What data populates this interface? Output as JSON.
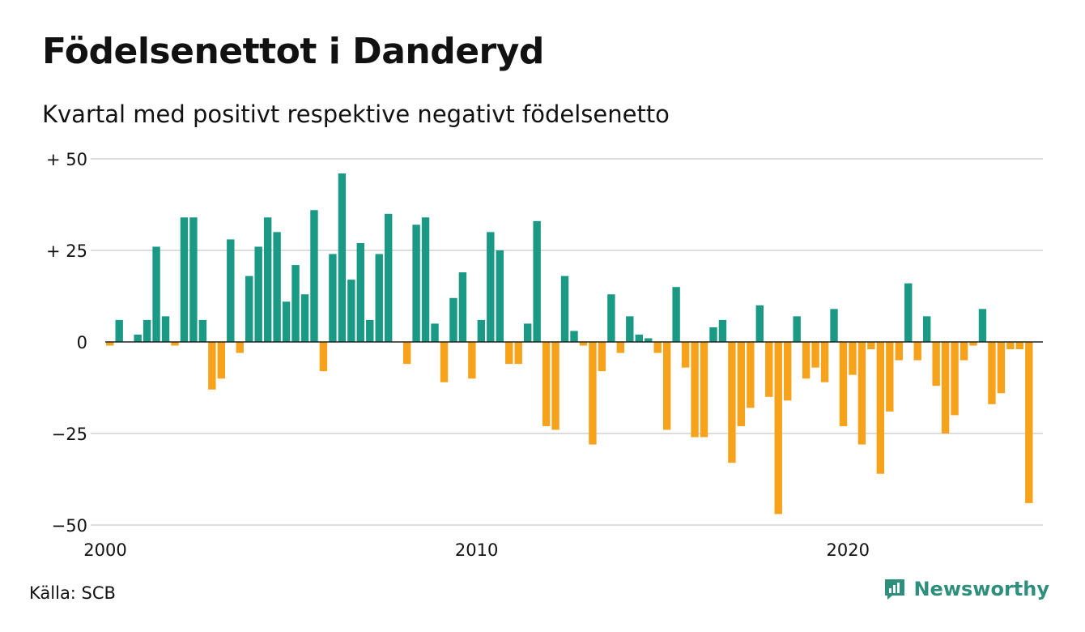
{
  "header": {
    "title": "Födelsenettot i Danderyd",
    "subtitle": "Kvartal med positivt respektive negativt födelsenetto"
  },
  "footer": {
    "source": "Källa: SCB",
    "brand": "Newsworthy",
    "brand_icon": "chart-logo-icon",
    "brand_color": "#2f8f7d"
  },
  "chart_data": {
    "type": "bar",
    "title": "Födelsenettot i Danderyd",
    "subtitle": "Kvartal med positivt respektive negativt födelsenetto",
    "x_start": 2000.0,
    "x_step": 0.25,
    "xlim": [
      2000,
      2025.25
    ],
    "x_ticks": [
      2000,
      2010,
      2020
    ],
    "x_tick_labels": [
      "2000",
      "2010",
      "2020"
    ],
    "ylim": [
      -50,
      50
    ],
    "y_ticks": [
      50,
      25,
      0,
      -25,
      -50
    ],
    "y_tick_labels": [
      "+ 50",
      "+ 25",
      "0",
      "−25",
      "−50"
    ],
    "grid": true,
    "colors": {
      "positive": "#1a9985",
      "negative": "#f7a21b",
      "grid": "#dddddd",
      "axis": "#222222"
    },
    "values": [
      -1,
      6,
      0,
      2,
      6,
      26,
      7,
      -1,
      34,
      34,
      6,
      -13,
      -10,
      28,
      -3,
      18,
      26,
      34,
      30,
      11,
      21,
      13,
      36,
      -8,
      24,
      46,
      17,
      27,
      6,
      24,
      35,
      0,
      -6,
      32,
      34,
      5,
      -11,
      12,
      19,
      -10,
      6,
      30,
      25,
      -6,
      -6,
      5,
      33,
      -23,
      -24,
      18,
      3,
      -1,
      -28,
      -8,
      13,
      -3,
      7,
      2,
      1,
      -3,
      -24,
      15,
      -7,
      -26,
      -26,
      4,
      6,
      -33,
      -23,
      -18,
      10,
      -15,
      -47,
      -16,
      7,
      -10,
      -7,
      -11,
      9,
      -23,
      -9,
      -28,
      -2,
      -36,
      -19,
      -5,
      16,
      -5,
      7,
      -12,
      -25,
      -20,
      -5,
      -1,
      9,
      -17,
      -14,
      -2,
      -2,
      -44
    ]
  }
}
